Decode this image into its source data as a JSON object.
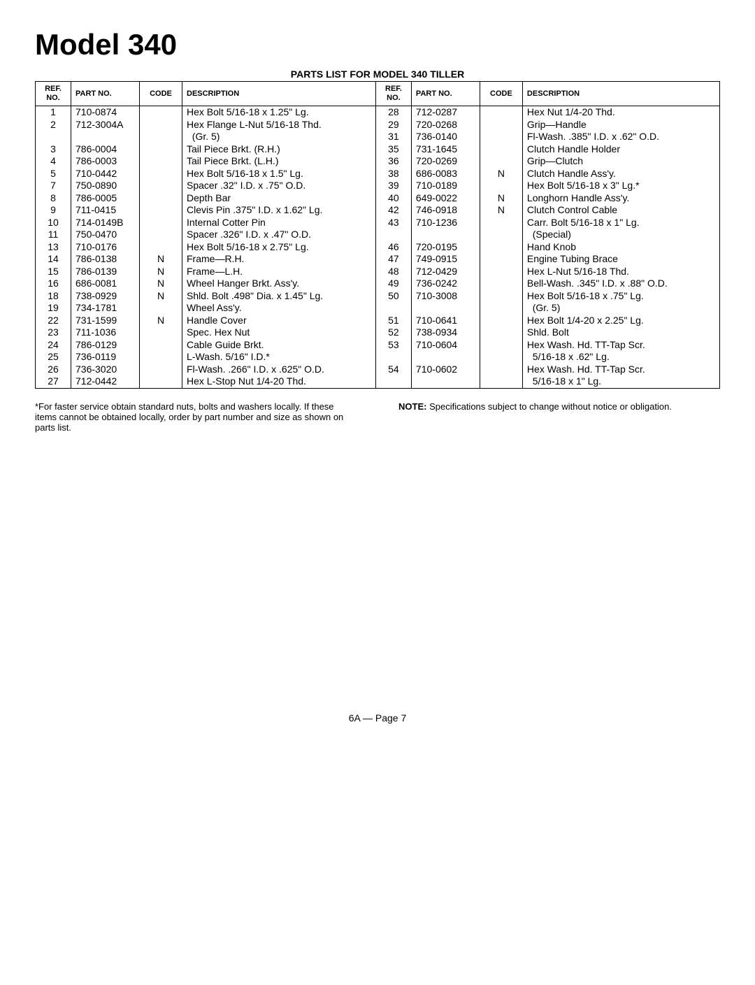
{
  "title": "Model 340",
  "subtitle": "PARTS LIST FOR MODEL 340 TILLER",
  "headers": {
    "ref": "REF. NO.",
    "part": "PART NO.",
    "code": "CODE",
    "desc": "DESCRIPTION"
  },
  "left_rows": [
    {
      "ref": "1",
      "part": "710-0874",
      "code": "",
      "desc": "Hex Bolt 5/16-18 x 1.25\" Lg."
    },
    {
      "ref": "2",
      "part": "712-3004A",
      "code": "",
      "desc": "Hex Flange L-Nut 5/16-18 Thd."
    },
    {
      "ref": "",
      "part": "",
      "code": "",
      "desc": "  (Gr. 5)"
    },
    {
      "ref": "3",
      "part": "786-0004",
      "code": "",
      "desc": "Tail Piece Brkt. (R.H.)"
    },
    {
      "ref": "4",
      "part": "786-0003",
      "code": "",
      "desc": "Tail Piece Brkt. (L.H.)"
    },
    {
      "ref": "5",
      "part": "710-0442",
      "code": "",
      "desc": "Hex Bolt 5/16-18 x 1.5\" Lg."
    },
    {
      "ref": "7",
      "part": "750-0890",
      "code": "",
      "desc": "Spacer .32\" I.D. x .75\" O.D."
    },
    {
      "ref": "8",
      "part": "786-0005",
      "code": "",
      "desc": "Depth Bar"
    },
    {
      "ref": "9",
      "part": "711-0415",
      "code": "",
      "desc": "Clevis Pin .375\" I.D. x 1.62\" Lg."
    },
    {
      "ref": "10",
      "part": "714-0149B",
      "code": "",
      "desc": "Internal Cotter Pin"
    },
    {
      "ref": "11",
      "part": "750-0470",
      "code": "",
      "desc": "Spacer .326\" I.D. x .47\" O.D."
    },
    {
      "ref": "13",
      "part": "710-0176",
      "code": "",
      "desc": "Hex Bolt 5/16-18 x 2.75\" Lg."
    },
    {
      "ref": "14",
      "part": "786-0138",
      "code": "N",
      "desc": "Frame—R.H."
    },
    {
      "ref": "15",
      "part": "786-0139",
      "code": "N",
      "desc": "Frame—L.H."
    },
    {
      "ref": "16",
      "part": "686-0081",
      "code": "N",
      "desc": "Wheel Hanger Brkt. Ass'y."
    },
    {
      "ref": "18",
      "part": "738-0929",
      "code": "N",
      "desc": "Shld. Bolt .498\" Dia. x 1.45\" Lg."
    },
    {
      "ref": "19",
      "part": "734-1781",
      "code": "",
      "desc": "Wheel Ass'y."
    },
    {
      "ref": "22",
      "part": "731-1599",
      "code": "N",
      "desc": "Handle Cover"
    },
    {
      "ref": "23",
      "part": "711-1036",
      "code": "",
      "desc": "Spec. Hex Nut"
    },
    {
      "ref": "24",
      "part": "786-0129",
      "code": "",
      "desc": "Cable Guide Brkt."
    },
    {
      "ref": "25",
      "part": "736-0119",
      "code": "",
      "desc": "L-Wash. 5/16\" I.D.*"
    },
    {
      "ref": "26",
      "part": "736-3020",
      "code": "",
      "desc": "Fl-Wash. .266\" I.D. x .625\" O.D."
    },
    {
      "ref": "27",
      "part": "712-0442",
      "code": "",
      "desc": "Hex L-Stop Nut 1/4-20 Thd."
    }
  ],
  "right_rows": [
    {
      "ref": "28",
      "part": "712-0287",
      "code": "",
      "desc": "Hex Nut 1/4-20 Thd."
    },
    {
      "ref": "29",
      "part": "720-0268",
      "code": "",
      "desc": "Grip—Handle"
    },
    {
      "ref": "31",
      "part": "736-0140",
      "code": "",
      "desc": "Fl-Wash. .385\" I.D. x .62\" O.D."
    },
    {
      "ref": "35",
      "part": "731-1645",
      "code": "",
      "desc": "Clutch Handle Holder"
    },
    {
      "ref": "36",
      "part": "720-0269",
      "code": "",
      "desc": "Grip—Clutch"
    },
    {
      "ref": "38",
      "part": "686-0083",
      "code": "N",
      "desc": "Clutch Handle Ass'y."
    },
    {
      "ref": "39",
      "part": "710-0189",
      "code": "",
      "desc": "Hex Bolt 5/16-18 x 3\" Lg.*"
    },
    {
      "ref": "40",
      "part": "649-0022",
      "code": "N",
      "desc": "Longhorn Handle Ass'y."
    },
    {
      "ref": "42",
      "part": "746-0918",
      "code": "N",
      "desc": "Clutch Control Cable"
    },
    {
      "ref": "43",
      "part": "710-1236",
      "code": "",
      "desc": "Carr. Bolt 5/16-18 x 1\" Lg."
    },
    {
      "ref": "",
      "part": "",
      "code": "",
      "desc": "  (Special)"
    },
    {
      "ref": "46",
      "part": "720-0195",
      "code": "",
      "desc": "Hand Knob"
    },
    {
      "ref": "47",
      "part": "749-0915",
      "code": "",
      "desc": "Engine Tubing Brace"
    },
    {
      "ref": "48",
      "part": "712-0429",
      "code": "",
      "desc": "Hex L-Nut 5/16-18 Thd."
    },
    {
      "ref": "49",
      "part": "736-0242",
      "code": "",
      "desc": "Bell-Wash. .345\" I.D. x .88\" O.D."
    },
    {
      "ref": "50",
      "part": "710-3008",
      "code": "",
      "desc": "Hex Bolt 5/16-18 x .75\" Lg."
    },
    {
      "ref": "",
      "part": "",
      "code": "",
      "desc": "  (Gr. 5)"
    },
    {
      "ref": "51",
      "part": "710-0641",
      "code": "",
      "desc": "Hex Bolt 1/4-20 x 2.25\" Lg."
    },
    {
      "ref": "52",
      "part": "738-0934",
      "code": "",
      "desc": "Shld. Bolt"
    },
    {
      "ref": "53",
      "part": "710-0604",
      "code": "",
      "desc": "Hex Wash. Hd. TT-Tap Scr."
    },
    {
      "ref": "",
      "part": "",
      "code": "",
      "desc": "  5/16-18 x .62\" Lg."
    },
    {
      "ref": "54",
      "part": "710-0602",
      "code": "",
      "desc": "Hex Wash. Hd. TT-Tap Scr."
    },
    {
      "ref": "",
      "part": "",
      "code": "",
      "desc": "  5/16-18 x 1\" Lg."
    }
  ],
  "footnote_left": "*For faster service obtain standard nuts, bolts and washers locally. If these items cannot be obtained locally, order by part number and size as shown on parts list.",
  "footnote_right_bold": "NOTE:",
  "footnote_right": " Specifications subject to change without notice or obligation.",
  "page_footer": "6A — Page 7"
}
